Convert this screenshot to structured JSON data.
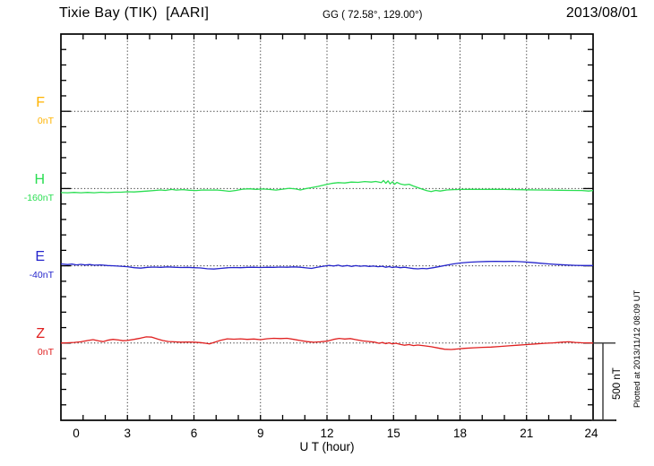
{
  "header": {
    "title": "Tixie Bay (TIK)  [AARI]",
    "coords": "GG ( 72.58°, 129.00°)",
    "date": "2013/08/01"
  },
  "footer_note": "Plotted at 2013/11/12 08:09 UT",
  "chart_data": {
    "type": "line",
    "title": "Tixie Bay (TIK)  [AARI]",
    "station": "Tixie Bay (TIK)",
    "institute": "AARI",
    "date": "2013/08/01",
    "xlabel": "U T (hour)",
    "x_range": [
      0,
      24
    ],
    "x_ticks": [
      0,
      3,
      6,
      9,
      12,
      15,
      18,
      21,
      24
    ],
    "x_minor_tick_hours": 1,
    "grid": "dotted vertical lines every 3 hours, dotted horizontal line at each channel baseline",
    "legend_position": "left margin channel labels",
    "scale_bar_label": "500 nT",
    "scale_bar_nT": 500,
    "y_axis": {
      "minor_tick_nT": 100,
      "channel_spacing_nT": 500,
      "total_span_nT": 2500
    },
    "series": [
      {
        "name": "F",
        "baseline_label": "0nT",
        "baseline_nT": 0,
        "unit": "nT",
        "color": "#ffb300",
        "points": []
      },
      {
        "name": "H",
        "baseline_label": "-160nT",
        "baseline_nT": -160,
        "unit": "nT",
        "color": "#2ade52",
        "points": [
          [
            0,
            -26
          ],
          [
            0.3,
            -27
          ],
          [
            0.6,
            -25
          ],
          [
            0.9,
            -27
          ],
          [
            1.2,
            -25
          ],
          [
            1.5,
            -27
          ],
          [
            1.8,
            -24
          ],
          [
            2.1,
            -26
          ],
          [
            2.4,
            -24
          ],
          [
            2.7,
            -24
          ],
          [
            3.0,
            -21
          ],
          [
            3.3,
            -22
          ],
          [
            3.6,
            -19
          ],
          [
            3.9,
            -16
          ],
          [
            4.2,
            -13
          ],
          [
            4.5,
            -9
          ],
          [
            4.7,
            -12
          ],
          [
            5.0,
            -6
          ],
          [
            5.2,
            -10
          ],
          [
            5.5,
            -7
          ],
          [
            5.8,
            -11
          ],
          [
            6.1,
            -13
          ],
          [
            6.4,
            -9
          ],
          [
            6.7,
            -10
          ],
          [
            7.0,
            -9
          ],
          [
            7.3,
            -13
          ],
          [
            7.6,
            -18
          ],
          [
            7.9,
            -12
          ],
          [
            8.2,
            -4
          ],
          [
            8.5,
            -2
          ],
          [
            8.8,
            -5
          ],
          [
            9.1,
            -3
          ],
          [
            9.4,
            -6
          ],
          [
            9.7,
            -10
          ],
          [
            10.0,
            -4
          ],
          [
            10.3,
            2
          ],
          [
            10.6,
            -3
          ],
          [
            10.8,
            -9
          ],
          [
            11.0,
            -2
          ],
          [
            11.3,
            6
          ],
          [
            11.6,
            14
          ],
          [
            11.9,
            24
          ],
          [
            12.2,
            33
          ],
          [
            12.5,
            38
          ],
          [
            12.8,
            36
          ],
          [
            13.1,
            42
          ],
          [
            13.4,
            40
          ],
          [
            13.7,
            45
          ],
          [
            14.0,
            42
          ],
          [
            14.2,
            46
          ],
          [
            14.45,
            38
          ],
          [
            14.55,
            52
          ],
          [
            14.65,
            34
          ],
          [
            14.75,
            50
          ],
          [
            14.85,
            30
          ],
          [
            14.95,
            44
          ],
          [
            15.05,
            28
          ],
          [
            15.15,
            40
          ],
          [
            15.3,
            30
          ],
          [
            15.5,
            24
          ],
          [
            15.7,
            28
          ],
          [
            15.9,
            16
          ],
          [
            16.1,
            6
          ],
          [
            16.3,
            -4
          ],
          [
            16.5,
            -14
          ],
          [
            16.7,
            -20
          ],
          [
            16.9,
            -12
          ],
          [
            17.1,
            -16
          ],
          [
            17.4,
            -9
          ],
          [
            17.7,
            -7
          ],
          [
            18.0,
            -6
          ],
          [
            18.5,
            -5
          ],
          [
            19.0,
            -6
          ],
          [
            19.5,
            -5
          ],
          [
            20.0,
            -6
          ],
          [
            20.5,
            -7
          ],
          [
            21.0,
            -8
          ],
          [
            21.5,
            -9
          ],
          [
            22.0,
            -10
          ],
          [
            22.5,
            -11
          ],
          [
            23.0,
            -12
          ],
          [
            23.5,
            -13
          ],
          [
            23.8,
            -16
          ],
          [
            24.0,
            -13
          ]
        ]
      },
      {
        "name": "E",
        "baseline_label": "-40nT",
        "baseline_nT": -40,
        "unit": "nT",
        "color": "#2525cc",
        "points": [
          [
            0,
            12
          ],
          [
            0.3,
            8
          ],
          [
            0.5,
            11
          ],
          [
            0.7,
            6
          ],
          [
            0.9,
            9
          ],
          [
            1.1,
            5
          ],
          [
            1.3,
            8
          ],
          [
            1.5,
            4
          ],
          [
            1.8,
            6
          ],
          [
            2.1,
            2
          ],
          [
            2.4,
            0
          ],
          [
            2.7,
            -3
          ],
          [
            3.0,
            -6
          ],
          [
            3.3,
            -12
          ],
          [
            3.6,
            -15
          ],
          [
            3.9,
            -10
          ],
          [
            4.2,
            -8
          ],
          [
            4.5,
            -10
          ],
          [
            4.8,
            -7
          ],
          [
            5.1,
            -9
          ],
          [
            5.4,
            -11
          ],
          [
            5.7,
            -10
          ],
          [
            6.0,
            -12
          ],
          [
            6.3,
            -14
          ],
          [
            6.6,
            -19
          ],
          [
            6.9,
            -21
          ],
          [
            7.2,
            -17
          ],
          [
            7.5,
            -13
          ],
          [
            7.8,
            -11
          ],
          [
            8.1,
            -12
          ],
          [
            8.4,
            -10
          ],
          [
            8.7,
            -9
          ],
          [
            9.0,
            -11
          ],
          [
            9.3,
            -9
          ],
          [
            9.6,
            -10
          ],
          [
            9.9,
            -8
          ],
          [
            10.2,
            -9
          ],
          [
            10.5,
            -7
          ],
          [
            10.8,
            -9
          ],
          [
            11.1,
            -14
          ],
          [
            11.3,
            -17
          ],
          [
            11.5,
            -11
          ],
          [
            11.7,
            -6
          ],
          [
            11.9,
            -2
          ],
          [
            12.1,
            3
          ],
          [
            12.3,
            -2
          ],
          [
            12.5,
            4
          ],
          [
            12.7,
            -3
          ],
          [
            12.9,
            2
          ],
          [
            13.1,
            -4
          ],
          [
            13.3,
            1
          ],
          [
            13.5,
            -3
          ],
          [
            13.7,
            0
          ],
          [
            13.9,
            -4
          ],
          [
            14.1,
            -2
          ],
          [
            14.3,
            -6
          ],
          [
            14.5,
            -3
          ],
          [
            14.65,
            -9
          ],
          [
            14.8,
            -5
          ],
          [
            14.95,
            -11
          ],
          [
            15.1,
            -7
          ],
          [
            15.3,
            -12
          ],
          [
            15.5,
            -9
          ],
          [
            15.7,
            -14
          ],
          [
            15.9,
            -18
          ],
          [
            16.1,
            -20
          ],
          [
            16.3,
            -17
          ],
          [
            16.5,
            -19
          ],
          [
            16.8,
            -12
          ],
          [
            17.1,
            -4
          ],
          [
            17.4,
            4
          ],
          [
            17.7,
            12
          ],
          [
            18.0,
            18
          ],
          [
            18.4,
            23
          ],
          [
            18.8,
            26
          ],
          [
            19.2,
            28
          ],
          [
            19.6,
            29
          ],
          [
            20.0,
            28
          ],
          [
            20.4,
            29
          ],
          [
            20.8,
            26
          ],
          [
            21.2,
            22
          ],
          [
            21.6,
            17
          ],
          [
            22.0,
            12
          ],
          [
            22.4,
            8
          ],
          [
            22.8,
            5
          ],
          [
            23.2,
            3
          ],
          [
            23.6,
            2
          ],
          [
            24.0,
            2
          ]
        ]
      },
      {
        "name": "Z",
        "baseline_label": "0nT",
        "baseline_nT": 0,
        "unit": "nT",
        "color": "#e02020",
        "points": [
          [
            0,
            0
          ],
          [
            0.3,
            2
          ],
          [
            0.6,
            4
          ],
          [
            0.9,
            8
          ],
          [
            1.2,
            16
          ],
          [
            1.45,
            22
          ],
          [
            1.7,
            14
          ],
          [
            1.9,
            9
          ],
          [
            2.1,
            18
          ],
          [
            2.35,
            24
          ],
          [
            2.6,
            20
          ],
          [
            2.8,
            15
          ],
          [
            3.0,
            17
          ],
          [
            3.3,
            24
          ],
          [
            3.6,
            32
          ],
          [
            3.85,
            40
          ],
          [
            4.1,
            38
          ],
          [
            4.35,
            26
          ],
          [
            4.6,
            16
          ],
          [
            4.85,
            10
          ],
          [
            5.1,
            8
          ],
          [
            5.4,
            6
          ],
          [
            5.7,
            7
          ],
          [
            6.0,
            6
          ],
          [
            6.3,
            3
          ],
          [
            6.55,
            -2
          ],
          [
            6.7,
            -5
          ],
          [
            6.9,
            4
          ],
          [
            7.2,
            18
          ],
          [
            7.5,
            27
          ],
          [
            7.8,
            25
          ],
          [
            8.1,
            27
          ],
          [
            8.4,
            24
          ],
          [
            8.7,
            26
          ],
          [
            9.0,
            22
          ],
          [
            9.3,
            28
          ],
          [
            9.6,
            31
          ],
          [
            9.9,
            29
          ],
          [
            10.2,
            31
          ],
          [
            10.5,
            24
          ],
          [
            10.8,
            16
          ],
          [
            11.1,
            9
          ],
          [
            11.4,
            5
          ],
          [
            11.7,
            8
          ],
          [
            12.0,
            12
          ],
          [
            12.3,
            24
          ],
          [
            12.55,
            30
          ],
          [
            12.8,
            26
          ],
          [
            13.05,
            29
          ],
          [
            13.3,
            22
          ],
          [
            13.6,
            14
          ],
          [
            13.9,
            10
          ],
          [
            14.15,
            6
          ],
          [
            14.35,
            -2
          ],
          [
            14.5,
            4
          ],
          [
            14.65,
            -4
          ],
          [
            14.8,
            2
          ],
          [
            14.95,
            -6
          ],
          [
            15.1,
            -1
          ],
          [
            15.3,
            -8
          ],
          [
            15.5,
            -14
          ],
          [
            15.7,
            -10
          ],
          [
            15.9,
            -16
          ],
          [
            16.1,
            -13
          ],
          [
            16.4,
            -18
          ],
          [
            16.7,
            -24
          ],
          [
            17.0,
            -32
          ],
          [
            17.3,
            -40
          ],
          [
            17.6,
            -42
          ],
          [
            17.9,
            -38
          ],
          [
            18.2,
            -34
          ],
          [
            18.6,
            -31
          ],
          [
            19.0,
            -28
          ],
          [
            19.4,
            -26
          ],
          [
            19.8,
            -22
          ],
          [
            20.2,
            -18
          ],
          [
            20.6,
            -14
          ],
          [
            21.0,
            -10
          ],
          [
            21.4,
            -6
          ],
          [
            21.8,
            -2
          ],
          [
            22.2,
            1
          ],
          [
            22.6,
            6
          ],
          [
            22.9,
            8
          ],
          [
            23.2,
            4
          ],
          [
            23.5,
            2
          ],
          [
            23.8,
            1
          ],
          [
            24.0,
            0
          ]
        ]
      }
    ]
  }
}
